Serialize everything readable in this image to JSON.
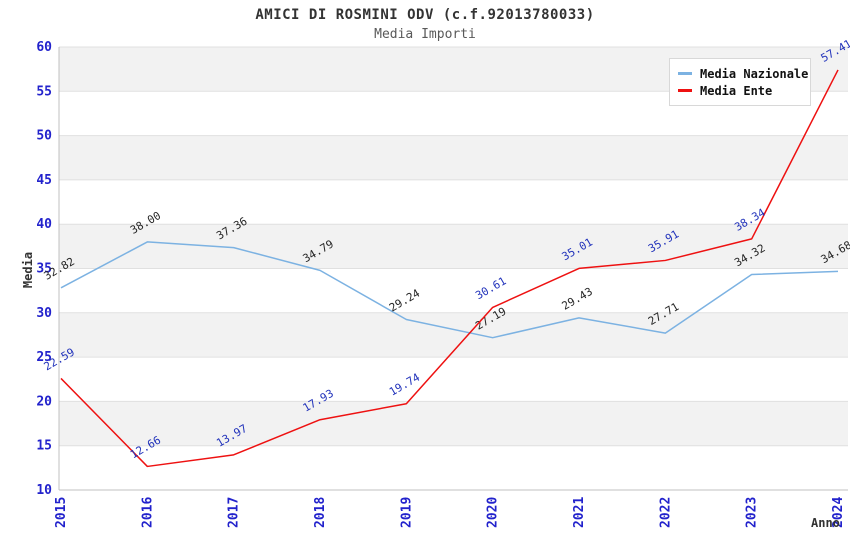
{
  "page": {
    "background": "#ffffff"
  },
  "chart_data": {
    "type": "line",
    "title": "AMICI DI ROSMINI ODV (c.f.92013780033)",
    "subtitle": "Media Importi",
    "xlabel": "Anno",
    "ylabel": "Media",
    "categories": [
      "2015",
      "2016",
      "2017",
      "2018",
      "2019",
      "2020",
      "2021",
      "2022",
      "2023",
      "2024"
    ],
    "series": [
      {
        "name": "Media Nazionale",
        "color": "#7cb2e2",
        "label_color": "#262626",
        "values": [
          32.82,
          38.0,
          37.36,
          34.79,
          29.24,
          27.19,
          29.43,
          27.71,
          34.32,
          34.68
        ]
      },
      {
        "name": "Media Ente",
        "color": "#ee1111",
        "label_color": "#2233bb",
        "values": [
          22.59,
          12.66,
          13.97,
          17.93,
          19.74,
          30.61,
          35.01,
          35.91,
          38.34,
          57.41
        ]
      }
    ],
    "ylim": [
      10,
      60
    ],
    "y_ticks": [
      10,
      15,
      20,
      25,
      30,
      35,
      40,
      45,
      50,
      55,
      60
    ],
    "tick_label_color": "#2222cc",
    "band_color": "#f2f2f2",
    "grid_line_color": "#e0e0e0",
    "axis_line_color": "#c0c0c0",
    "legend_position": "top-right",
    "value_label_decimals": 2
  }
}
